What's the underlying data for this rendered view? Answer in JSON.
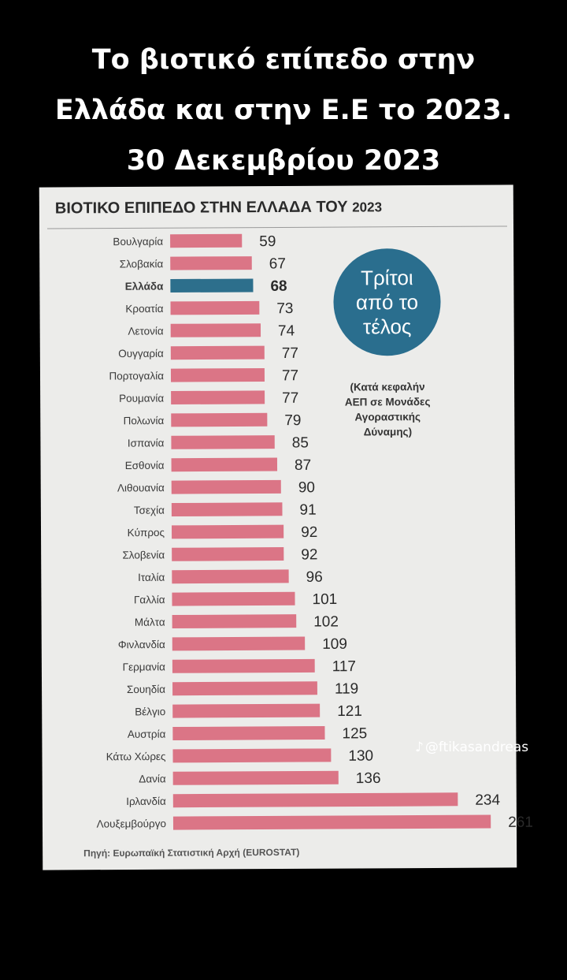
{
  "headline": {
    "line1": "Το βιοτικό επίπεδο στην",
    "line2": "Ελλάδα και στην Ε.Ε το 2023.",
    "line3": "30 Δεκεμβρίου 2023"
  },
  "chart_data": {
    "type": "bar",
    "orientation": "horizontal",
    "title": "ΒΙΟΤΙΚΟ ΕΠΙΠΕΔΟ ΣΤΗΝ ΕΛΛΑΔΑ ΤΟΥ",
    "title_year": "2023",
    "categories": [
      "Βουλγαρία",
      "Σλοβακία",
      "Ελλάδα",
      "Κροατία",
      "Λετονία",
      "Ουγγαρία",
      "Πορτογαλία",
      "Ρουμανία",
      "Πολωνία",
      "Ισπανία",
      "Εσθονία",
      "Λιθουανία",
      "Τσεχία",
      "Κύπρος",
      "Σλοβενία",
      "Ιταλία",
      "Γαλλία",
      "Μάλτα",
      "Φινλανδία",
      "Γερμανία",
      "Σουηδία",
      "Βέλγιο",
      "Αυστρία",
      "Κάτω Χώρες",
      "Δανία",
      "Ιρλανδία",
      "Λουξεμβούργο"
    ],
    "values": [
      59,
      67,
      68,
      73,
      74,
      77,
      77,
      77,
      79,
      85,
      87,
      90,
      91,
      92,
      92,
      96,
      101,
      102,
      109,
      117,
      119,
      121,
      125,
      130,
      136,
      234,
      261
    ],
    "highlight": "Ελλάδα",
    "colors": {
      "bar": "#db7586",
      "highlight": "#2d6f8c"
    },
    "callout_lines": [
      "Τρίτοι",
      "από το",
      "τέλος"
    ],
    "note_lines": [
      "(Κατά κεφαλήν",
      "ΑΕΠ σε Μονάδες",
      "Αγοραστικής",
      "Δύναμης)"
    ],
    "source": "Πηγή: Ευρωπαϊκή Στατιστική Αρχή (EUROSTAT)"
  },
  "watermark": {
    "handle": "@ftikasandreas",
    "icon": "tiktok-icon"
  }
}
